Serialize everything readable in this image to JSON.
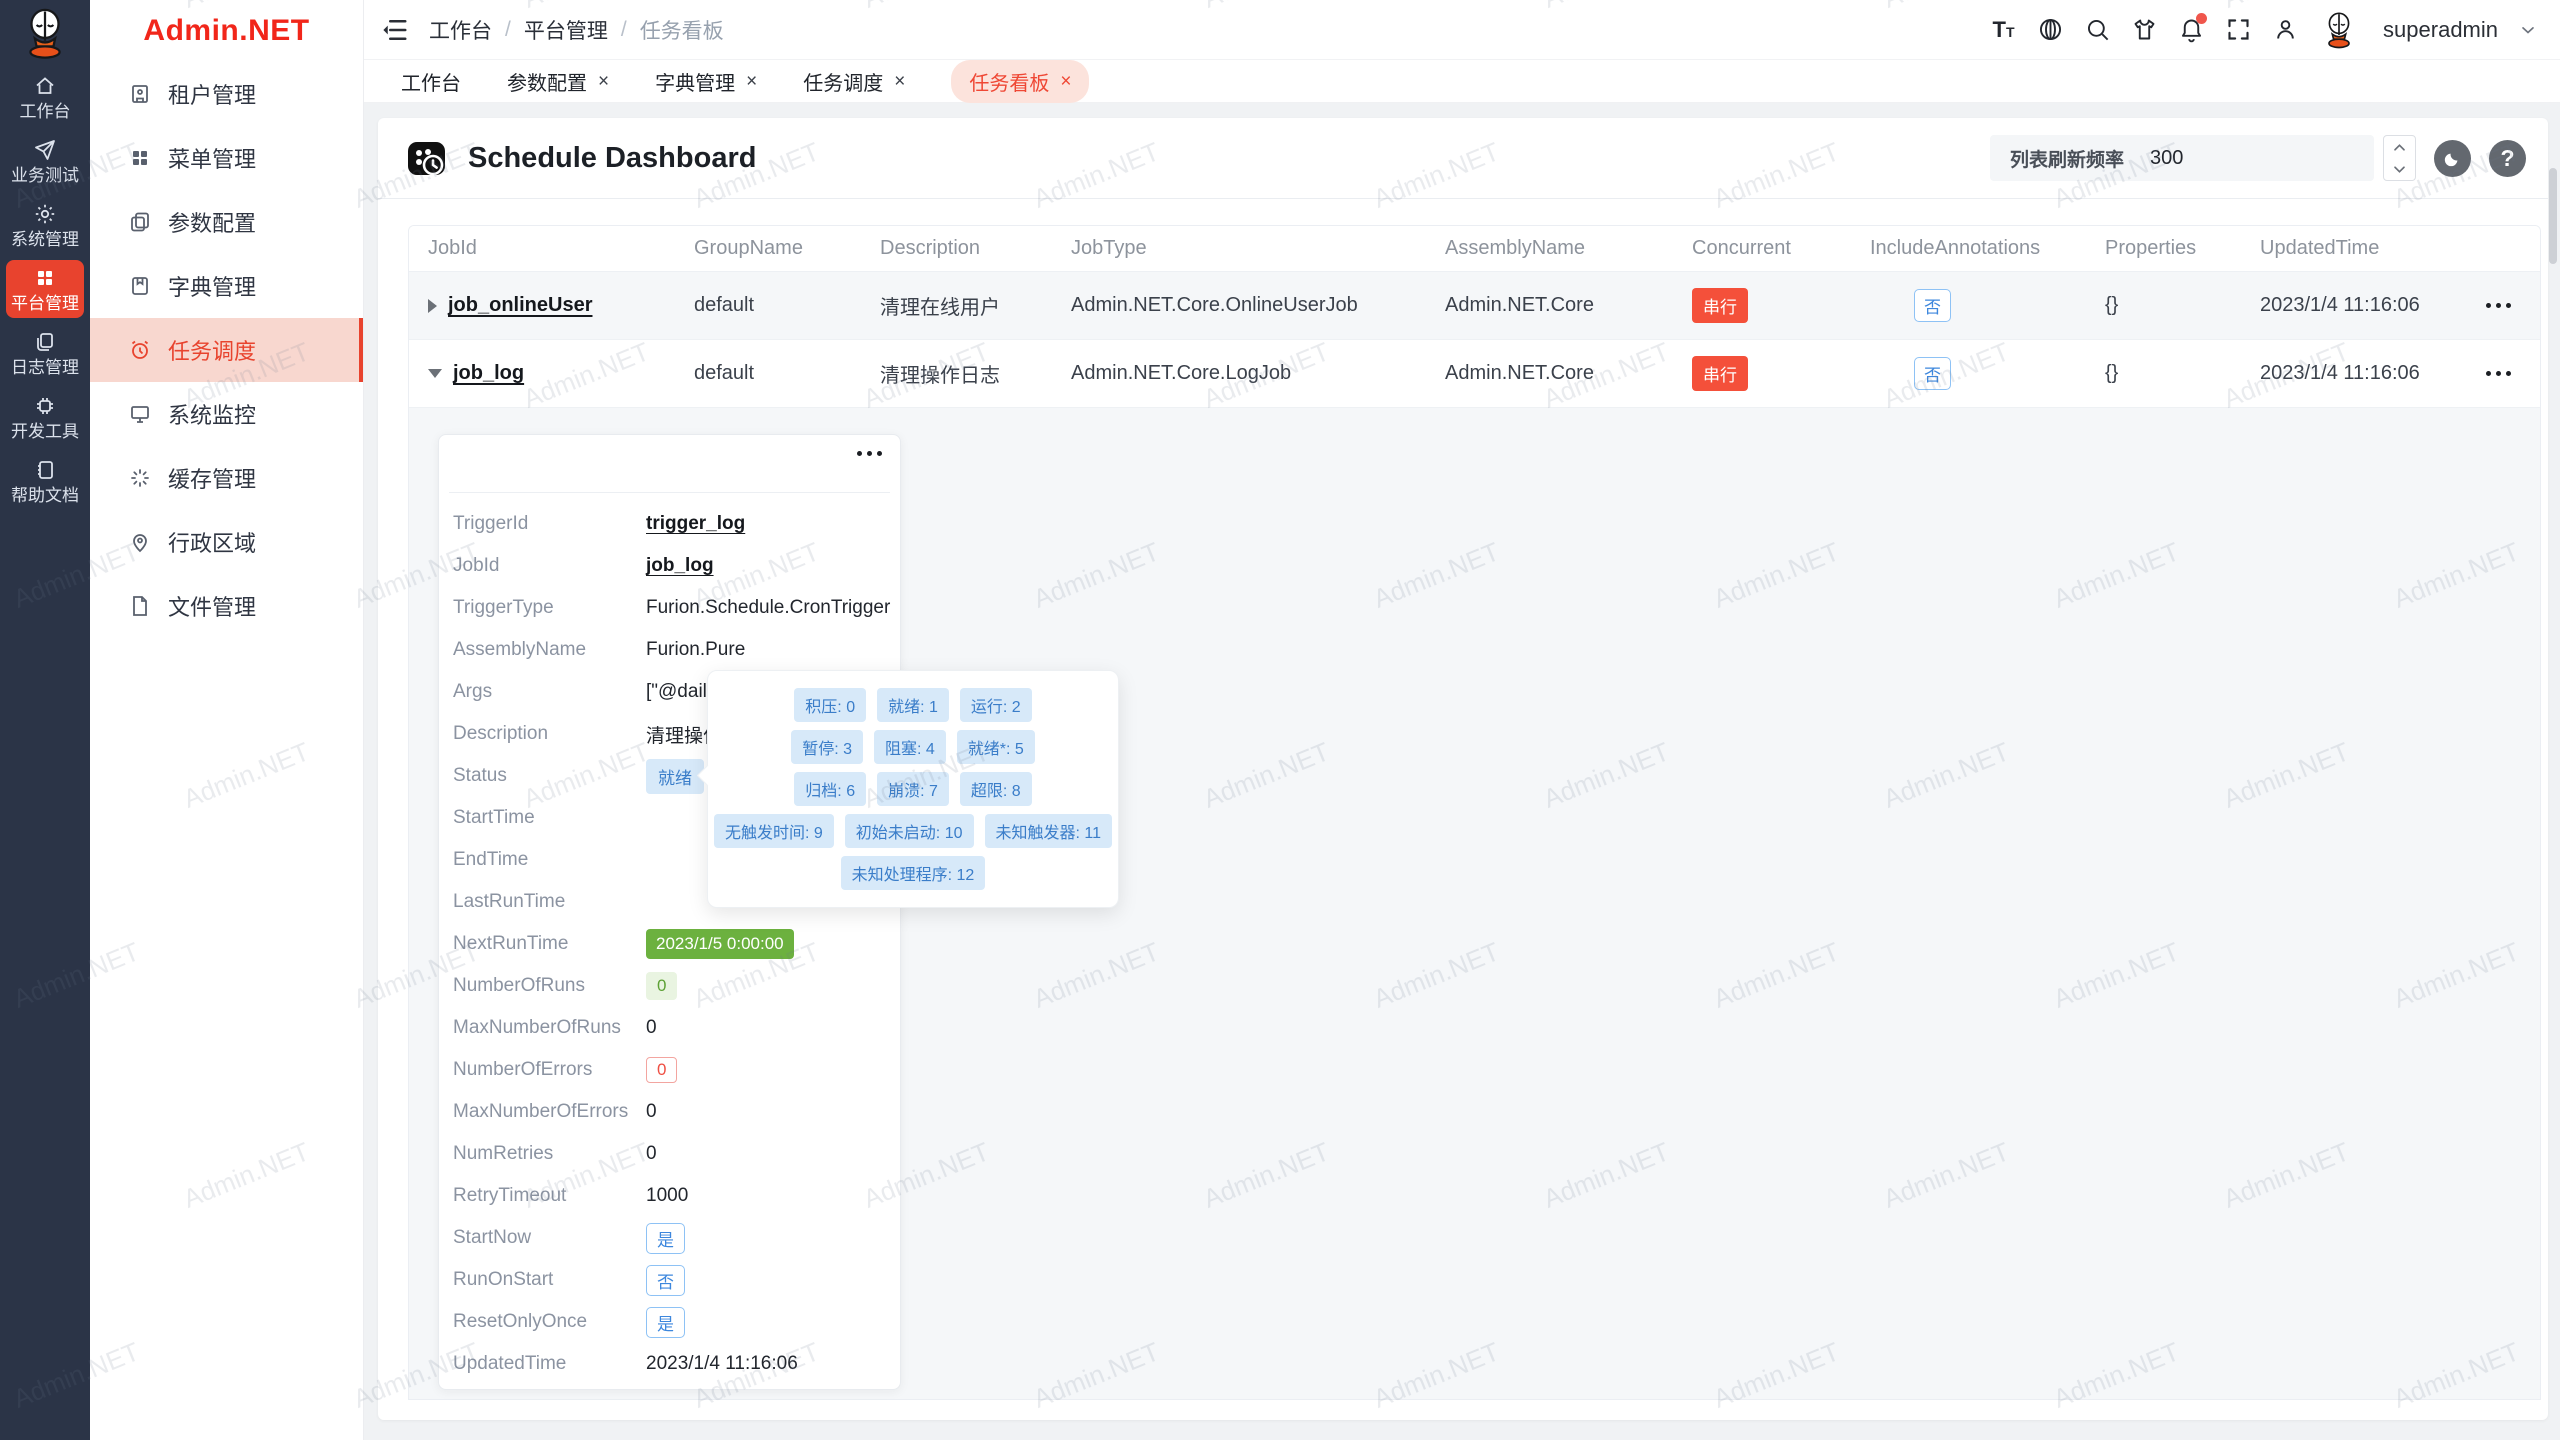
{
  "watermark": "Admin.NET",
  "rail": {
    "items": [
      {
        "label": "工作台",
        "icon": "home-icon",
        "active": false
      },
      {
        "label": "业务测试",
        "icon": "send-icon",
        "active": false
      },
      {
        "label": "系统管理",
        "icon": "gear-icon",
        "active": false
      },
      {
        "label": "平台管理",
        "icon": "grid-icon",
        "active": true
      },
      {
        "label": "日志管理",
        "icon": "copy-icon",
        "active": false
      },
      {
        "label": "开发工具",
        "icon": "chip-icon",
        "active": false
      },
      {
        "label": "帮助文档",
        "icon": "book-icon",
        "active": false
      }
    ]
  },
  "sidebar": {
    "logo_text": "Admin.NET",
    "items": [
      {
        "label": "租户管理",
        "icon": "tenant-icon",
        "active": false
      },
      {
        "label": "菜单管理",
        "icon": "menu-grid-icon",
        "active": false
      },
      {
        "label": "参数配置",
        "icon": "params-icon",
        "active": false
      },
      {
        "label": "字典管理",
        "icon": "dict-icon",
        "active": false
      },
      {
        "label": "任务调度",
        "icon": "alarm-clock-icon",
        "active": true
      },
      {
        "label": "系统监控",
        "icon": "monitor-icon",
        "active": false
      },
      {
        "label": "缓存管理",
        "icon": "cache-icon",
        "active": false
      },
      {
        "label": "行政区域",
        "icon": "map-pin-icon",
        "active": false
      },
      {
        "label": "文件管理",
        "icon": "file-icon",
        "active": false
      }
    ]
  },
  "topbar": {
    "breadcrumb": [
      "工作台",
      "平台管理",
      "任务看板"
    ],
    "separator": "/",
    "action_icons": [
      "text-size-icon",
      "language-icon",
      "search-icon",
      "theme-icon",
      "notification-bell-icon",
      "fullscreen-icon",
      "user-icon"
    ],
    "username": "superadmin"
  },
  "tabs": [
    {
      "label": "工作台",
      "closable": false,
      "active": false
    },
    {
      "label": "参数配置",
      "closable": true,
      "active": false
    },
    {
      "label": "字典管理",
      "closable": true,
      "active": false
    },
    {
      "label": "任务调度",
      "closable": true,
      "active": false
    },
    {
      "label": "任务看板",
      "closable": true,
      "active": true
    }
  ],
  "card": {
    "title": "Schedule Dashboard",
    "refresh_label": "列表刷新频率",
    "refresh_value": "300"
  },
  "table": {
    "columns": [
      "JobId",
      "GroupName",
      "Description",
      "JobType",
      "AssemblyName",
      "Concurrent",
      "IncludeAnnotations",
      "Properties",
      "UpdatedTime"
    ],
    "rows": [
      {
        "expanded": false,
        "jobId": "job_onlineUser",
        "groupName": "default",
        "description": "清理在线用户",
        "jobType": "Admin.NET.Core.OnlineUserJob",
        "assemblyName": "Admin.NET.Core",
        "concurrent": "串行",
        "includeAnnotations": "否",
        "properties": "{}",
        "updatedTime": "2023/1/4 11:16:06"
      },
      {
        "expanded": true,
        "jobId": "job_log",
        "groupName": "default",
        "description": "清理操作日志",
        "jobType": "Admin.NET.Core.LogJob",
        "assemblyName": "Admin.NET.Core",
        "concurrent": "串行",
        "includeAnnotations": "否",
        "properties": "{}",
        "updatedTime": "2023/1/4 11:16:06"
      }
    ]
  },
  "detail": {
    "rows": [
      {
        "label": "TriggerId",
        "value": "trigger_log",
        "type": "link"
      },
      {
        "label": "JobId",
        "value": "job_log",
        "type": "link"
      },
      {
        "label": "TriggerType",
        "value": "Furion.Schedule.CronTrigger",
        "type": "text"
      },
      {
        "label": "AssemblyName",
        "value": "Furion.Pure",
        "type": "text"
      },
      {
        "label": "Args",
        "value": "[\"@daily\"]",
        "type": "text"
      },
      {
        "label": "Description",
        "value": "清理操作日志",
        "type": "text"
      },
      {
        "label": "Status",
        "value": "就绪",
        "type": "badge-blue"
      },
      {
        "label": "StartTime",
        "value": "",
        "type": "text"
      },
      {
        "label": "EndTime",
        "value": "",
        "type": "text"
      },
      {
        "label": "LastRunTime",
        "value": "",
        "type": "text"
      },
      {
        "label": "NextRunTime",
        "value": "2023/1/5 0:00:00",
        "type": "badge-green"
      },
      {
        "label": "NumberOfRuns",
        "value": "0",
        "type": "badge-green-light"
      },
      {
        "label": "MaxNumberOfRuns",
        "value": "0",
        "type": "text"
      },
      {
        "label": "NumberOfErrors",
        "value": "0",
        "type": "badge-red-outline"
      },
      {
        "label": "MaxNumberOfErrors",
        "value": "0",
        "type": "text"
      },
      {
        "label": "NumRetries",
        "value": "0",
        "type": "text"
      },
      {
        "label": "RetryTimeout",
        "value": "1000",
        "type": "text"
      },
      {
        "label": "StartNow",
        "value": "是",
        "type": "badge-blue-outline"
      },
      {
        "label": "RunOnStart",
        "value": "否",
        "type": "badge-blue-outline"
      },
      {
        "label": "ResetOnlyOnce",
        "value": "是",
        "type": "badge-blue-outline"
      },
      {
        "label": "UpdatedTime",
        "value": "2023/1/4 11:16:06",
        "type": "text"
      }
    ]
  },
  "status_tooltip": {
    "rows": [
      [
        "积压: 0",
        "就绪: 1",
        "运行: 2"
      ],
      [
        "暂停: 3",
        "阻塞: 4",
        "就绪*: 5"
      ],
      [
        "归档: 6",
        "崩溃: 7",
        "超限: 8"
      ],
      [
        "无触发时间: 9",
        "初始未启动: 10",
        "未知触发器: 11"
      ],
      [
        "未知处理程序: 12"
      ]
    ]
  },
  "colors": {
    "accent_red": "#e8432e",
    "logo_red": "#f1261a",
    "rail_bg": "#2b3447",
    "badge_blue_bg": "#d7e9f9",
    "badge_blue_text": "#3a7dc9",
    "badge_green": "#6cb13f",
    "tag_red": "#f4503a"
  }
}
